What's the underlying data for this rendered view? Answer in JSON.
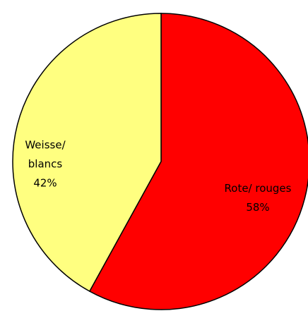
{
  "chart_data": {
    "type": "pie",
    "categories": [
      "Rote/ rouges",
      "Weisse/ blancs"
    ],
    "values": [
      58,
      42
    ],
    "value_labels": [
      "58%",
      "42%"
    ],
    "colors": [
      "#ff0000",
      "#ffff80"
    ]
  }
}
